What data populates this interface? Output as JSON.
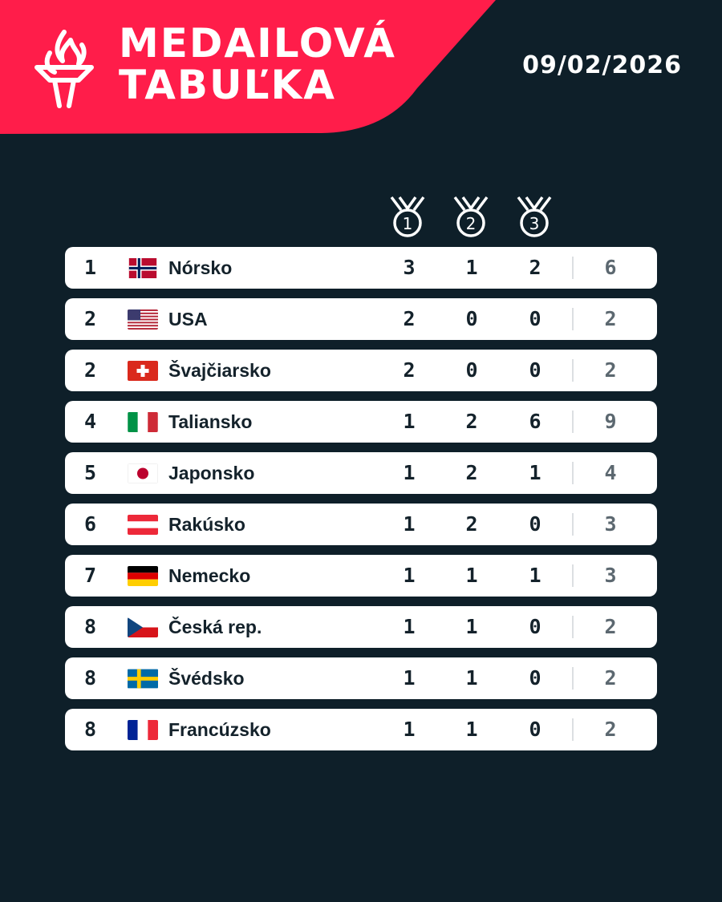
{
  "header": {
    "title_line1": "MEDAILOVÁ",
    "title_line2": "TABUĽKA",
    "date": "09/02/2026",
    "accent_color": "#ff1d4a",
    "background_color": "#0e1f29"
  },
  "medal_headers": [
    {
      "icon": "gold-medal-icon",
      "label": "1"
    },
    {
      "icon": "silver-medal-icon",
      "label": "2"
    },
    {
      "icon": "bronze-medal-icon",
      "label": "3"
    }
  ],
  "rows": [
    {
      "rank": "1",
      "country": "Nórsko",
      "flag": "norway-flag-icon",
      "gold": "3",
      "silver": "1",
      "bronze": "2",
      "total": "6"
    },
    {
      "rank": "2",
      "country": "USA",
      "flag": "usa-flag-icon",
      "gold": "2",
      "silver": "0",
      "bronze": "0",
      "total": "2"
    },
    {
      "rank": "2",
      "country": "Švajčiarsko",
      "flag": "switzerland-flag-icon",
      "gold": "2",
      "silver": "0",
      "bronze": "0",
      "total": "2"
    },
    {
      "rank": "4",
      "country": "Taliansko",
      "flag": "italy-flag-icon",
      "gold": "1",
      "silver": "2",
      "bronze": "6",
      "total": "9"
    },
    {
      "rank": "5",
      "country": "Japonsko",
      "flag": "japan-flag-icon",
      "gold": "1",
      "silver": "2",
      "bronze": "1",
      "total": "4"
    },
    {
      "rank": "6",
      "country": "Rakúsko",
      "flag": "austria-flag-icon",
      "gold": "1",
      "silver": "2",
      "bronze": "0",
      "total": "3"
    },
    {
      "rank": "7",
      "country": "Nemecko",
      "flag": "germany-flag-icon",
      "gold": "1",
      "silver": "1",
      "bronze": "1",
      "total": "3"
    },
    {
      "rank": "8",
      "country": "Česká rep.",
      "flag": "czech-flag-icon",
      "gold": "1",
      "silver": "1",
      "bronze": "0",
      "total": "2"
    },
    {
      "rank": "8",
      "country": "Švédsko",
      "flag": "sweden-flag-icon",
      "gold": "1",
      "silver": "1",
      "bronze": "0",
      "total": "2"
    },
    {
      "rank": "8",
      "country": "Francúzsko",
      "flag": "france-flag-icon",
      "gold": "1",
      "silver": "1",
      "bronze": "0",
      "total": "2"
    }
  ]
}
